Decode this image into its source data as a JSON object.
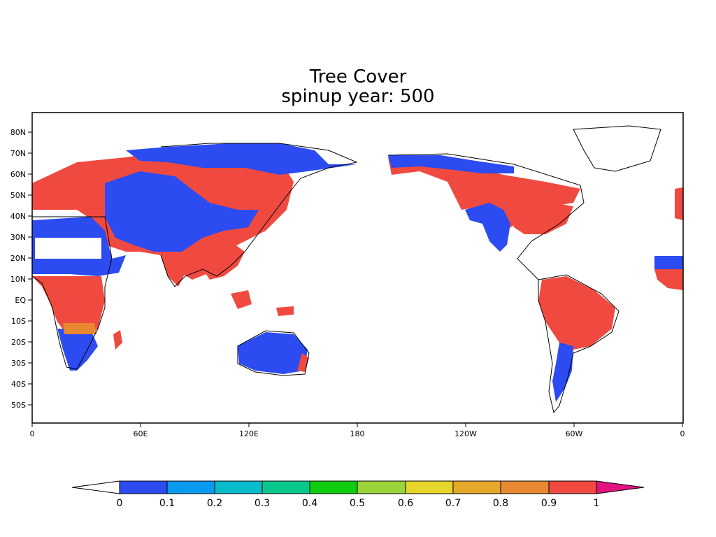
{
  "title": {
    "line1": "Tree Cover",
    "line2": "spinup year: 500"
  },
  "map": {
    "lat_ticks": [
      "80N",
      "70N",
      "60N",
      "50N",
      "40N",
      "30N",
      "20N",
      "10N",
      "EQ",
      "10S",
      "20S",
      "30S",
      "40S",
      "50S"
    ],
    "lon_ticks": [
      "0",
      "60E",
      "120E",
      "180",
      "120W",
      "60W",
      "0"
    ],
    "field": "tree cover fraction (0 to 1)"
  },
  "colorbar": {
    "labels": [
      "0",
      "0.1",
      "0.2",
      "0.3",
      "0.4",
      "0.5",
      "0.6",
      "0.7",
      "0.8",
      "0.9",
      "1"
    ],
    "colors": [
      "#2c4bf0",
      "#0a9bf0",
      "#08bccc",
      "#07c88a",
      "#10cc10",
      "#9bd43a",
      "#e6d52a",
      "#e5a92a",
      "#e88830",
      "#f04a40"
    ],
    "under_color": "#ffffff",
    "over_color": "#e2127f"
  }
}
